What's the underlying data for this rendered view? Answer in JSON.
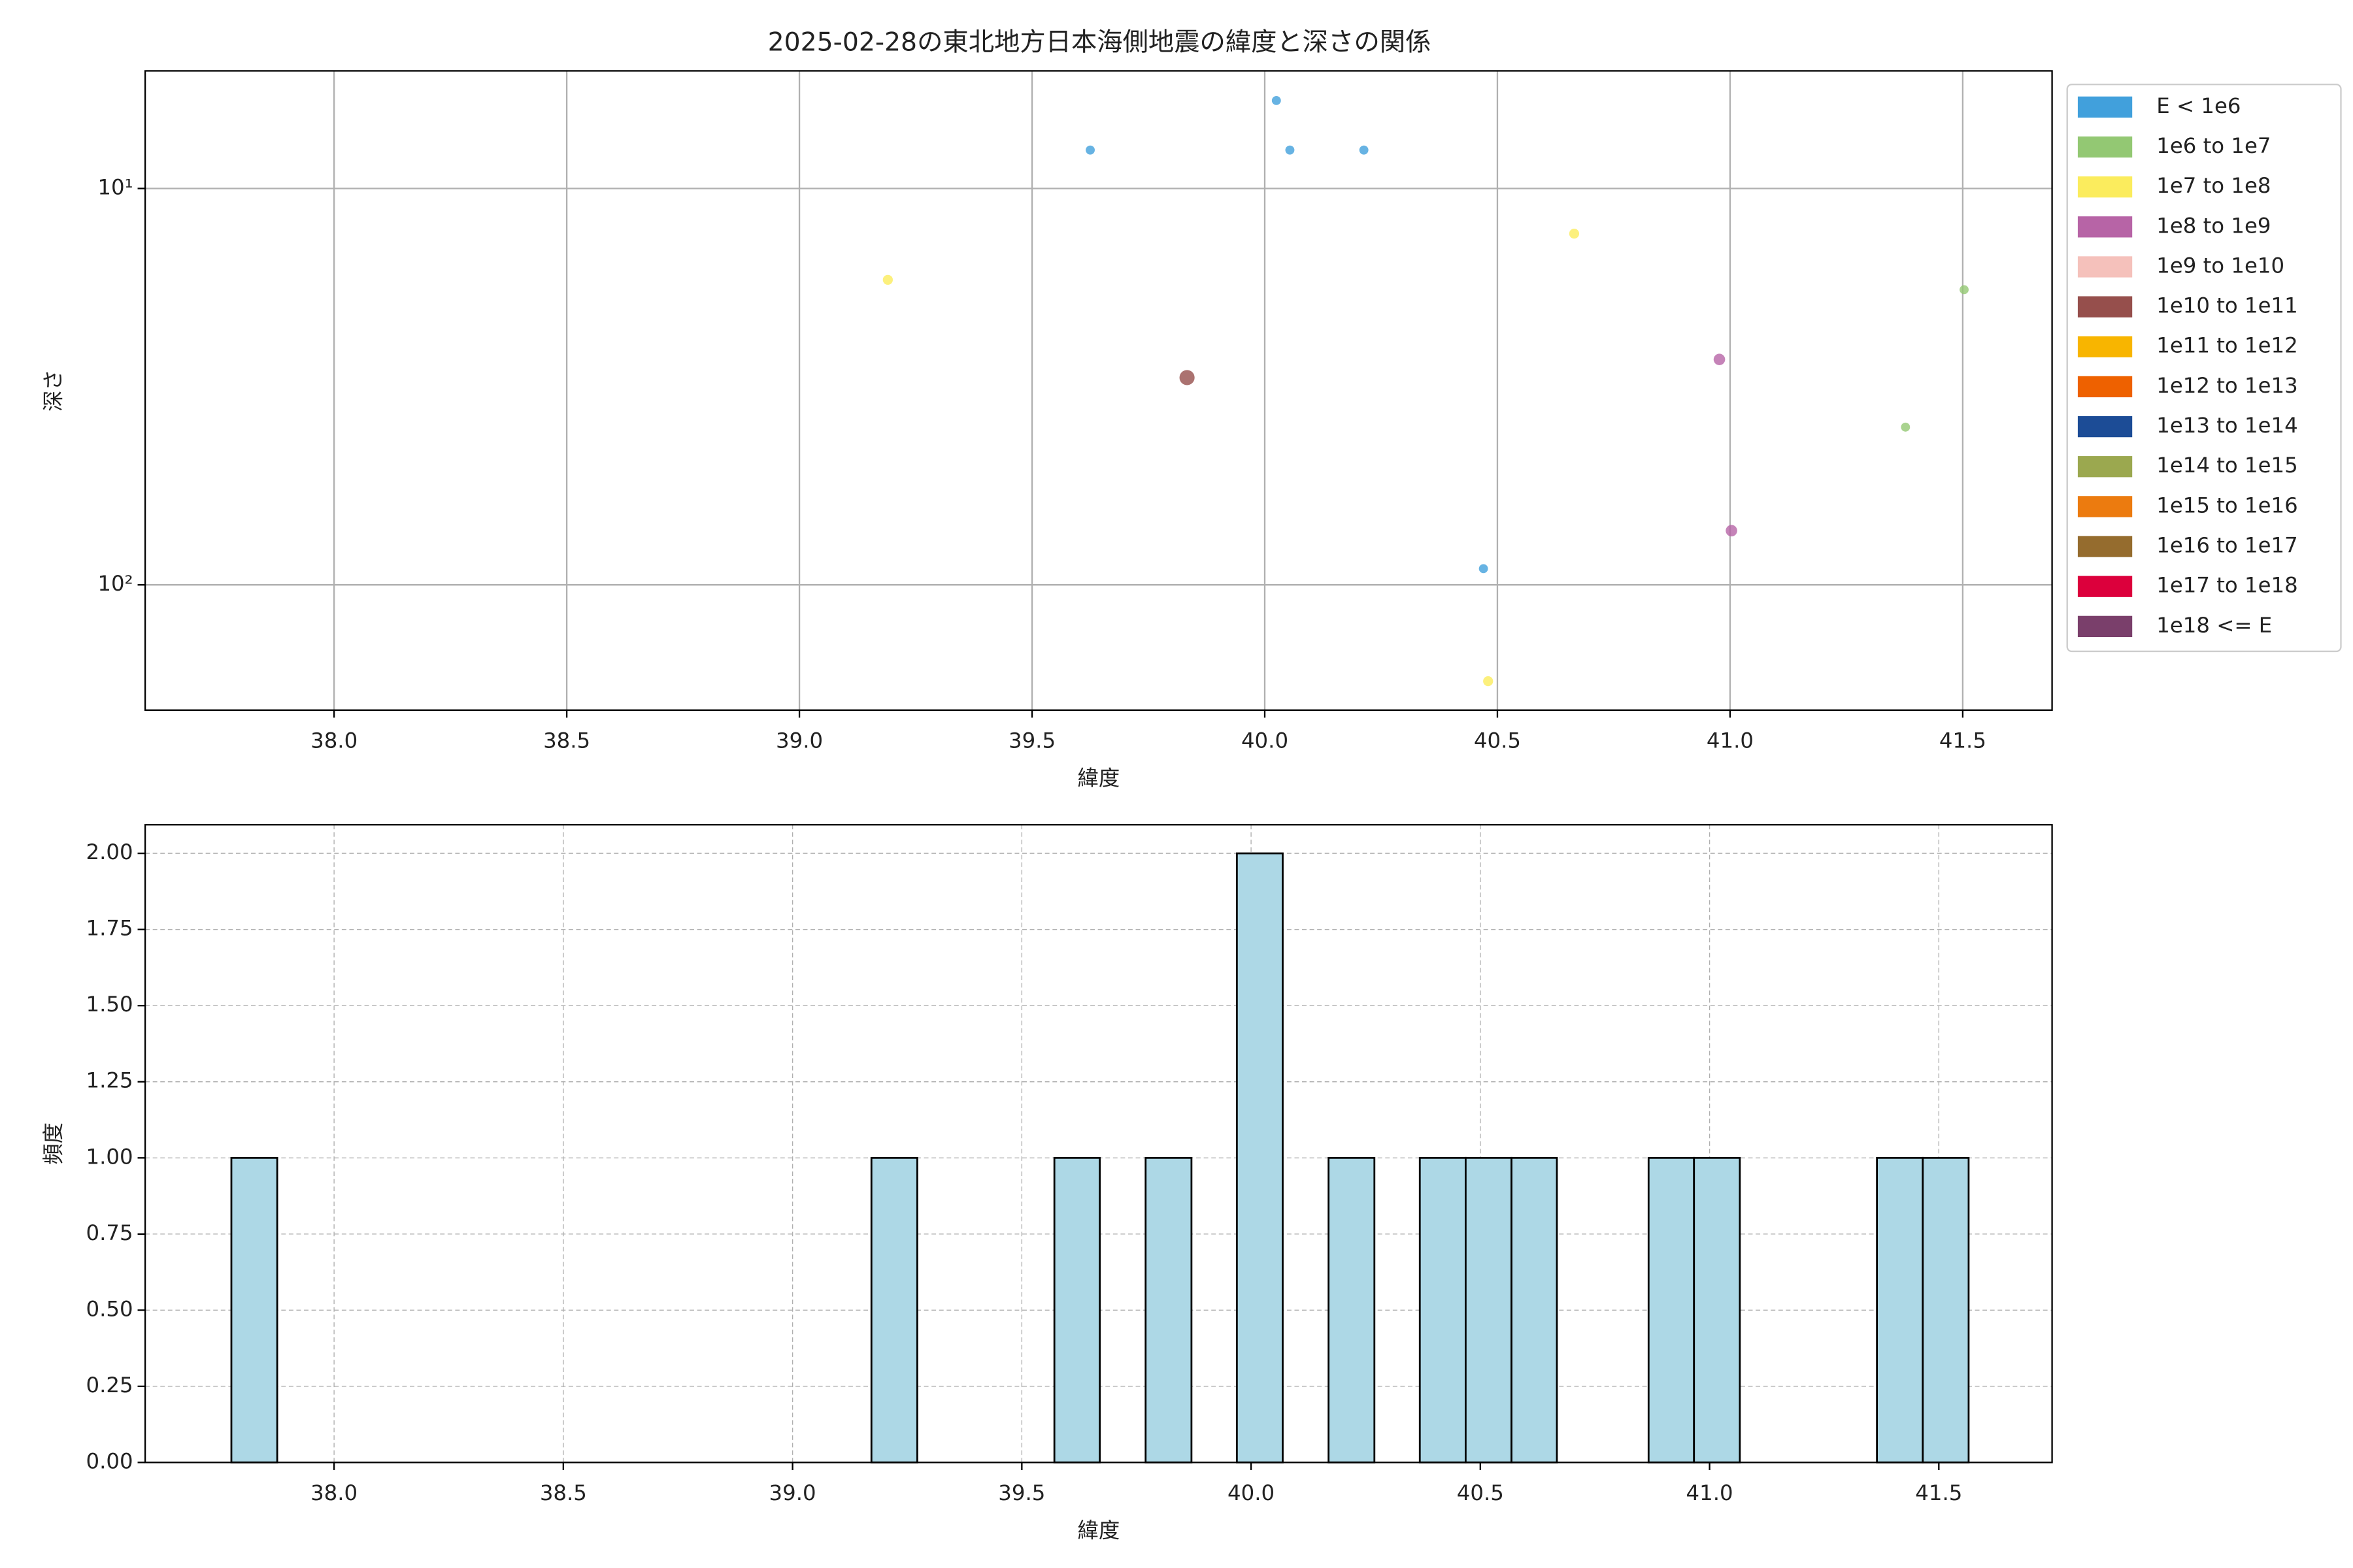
{
  "chart_data": [
    {
      "type": "scatter",
      "title": "2025-02-28の東北地方日本海側地震の緯度と深さの関係",
      "xlabel": "緯度",
      "ylabel": "深さ",
      "xlim": [
        37.594,
        41.692
      ],
      "xticks": [
        {
          "value": 38,
          "label": "38.0"
        },
        {
          "value": 38.5,
          "label": "38.5"
        },
        {
          "value": 39,
          "label": "39.0"
        },
        {
          "value": 39.5,
          "label": "39.5"
        },
        {
          "value": 40,
          "label": "40.0"
        },
        {
          "value": 40.5,
          "label": "40.5"
        },
        {
          "value": 41,
          "label": "41.0"
        },
        {
          "value": 41.5,
          "label": "41.5"
        }
      ],
      "ylim": [
        5.05,
        207
      ],
      "yscale": "log",
      "y_inverted": true,
      "yticks": [
        {
          "value": 10,
          "label": "10¹"
        },
        {
          "value": 100,
          "label": "10²"
        }
      ],
      "grid": true,
      "legend": "outside right",
      "series": [
        {
          "name": "E < 1e6",
          "color": "#41a0dc",
          "marker_size": 3,
          "x": [
            39.625,
            40.025,
            40.054,
            40.213,
            40.47
          ],
          "values": [
            8,
            6,
            8,
            8,
            91
          ]
        },
        {
          "name": "1e6 to 1e7",
          "color": "#93c873",
          "marker_size": 3,
          "x": [
            41.503,
            41.377
          ],
          "values": [
            18,
            40
          ]
        },
        {
          "name": "1e7 to 1e8",
          "color": "#fbec5d",
          "marker_size": 3.3,
          "x": [
            39.19,
            40.665,
            40.48
          ],
          "values": [
            17,
            13,
            175
          ]
        },
        {
          "name": "1e8 to 1e9",
          "color": "#b764a6",
          "marker_size": 3.8,
          "x": [
            40.977,
            41.003
          ],
          "values": [
            27,
            73
          ]
        },
        {
          "name": "1e9 to 1e10",
          "color": "#f5c1bb",
          "marker_size": 4,
          "x": [],
          "values": []
        },
        {
          "name": "1e10 to 1e11",
          "color": "#964f4c",
          "marker_size": 5,
          "x": [
            39.833
          ],
          "values": [
            30
          ]
        },
        {
          "name": "1e11 to 1e12",
          "color": "#f8b500",
          "marker_size": 5,
          "x": [],
          "values": []
        },
        {
          "name": "1e12 to 1e13",
          "color": "#ee6100",
          "marker_size": 5,
          "x": [],
          "values": []
        },
        {
          "name": "1e13 to 1e14",
          "color": "#1c4c96",
          "marker_size": 5,
          "x": [],
          "values": []
        },
        {
          "name": "1e14 to 1e15",
          "color": "#9ba84f",
          "marker_size": 5,
          "x": [],
          "values": []
        },
        {
          "name": "1e15 to 1e16",
          "color": "#ec7b0f",
          "marker_size": 5,
          "x": [],
          "values": []
        },
        {
          "name": "1e16 to 1e17",
          "color": "#956c2e",
          "marker_size": 5,
          "x": [],
          "values": []
        },
        {
          "name": "1e17 to 1e18",
          "color": "#dc003c",
          "marker_size": 5,
          "x": [],
          "values": []
        },
        {
          "name": "1e18 <= E",
          "color": "#7a3f6b",
          "marker_size": 5,
          "x": [],
          "values": []
        }
      ]
    },
    {
      "type": "histogram",
      "xlabel": "緯度",
      "ylabel": "頻度",
      "color": "#add8e6",
      "edgecolor": "#000000",
      "xlim": [
        37.588,
        41.747
      ],
      "xticks": [
        {
          "value": 38,
          "label": "38.0"
        },
        {
          "value": 38.5,
          "label": "38.5"
        },
        {
          "value": 39,
          "label": "39.0"
        },
        {
          "value": 39.5,
          "label": "39.5"
        },
        {
          "value": 40,
          "label": "40.0"
        },
        {
          "value": 40.5,
          "label": "40.5"
        },
        {
          "value": 41,
          "label": "41.0"
        },
        {
          "value": 41.5,
          "label": "41.5"
        }
      ],
      "ylim": [
        0,
        2.094
      ],
      "yticks": [
        {
          "value": 0,
          "label": "0.00"
        },
        {
          "value": 0.25,
          "label": "0.25"
        },
        {
          "value": 0.5,
          "label": "0.50"
        },
        {
          "value": 0.75,
          "label": "0.75"
        },
        {
          "value": 1,
          "label": "1.00"
        },
        {
          "value": 1.25,
          "label": "1.25"
        },
        {
          "value": 1.5,
          "label": "1.50"
        },
        {
          "value": 1.75,
          "label": "1.75"
        },
        {
          "value": 2,
          "label": "2.00"
        }
      ],
      "grid": true,
      "grid_style": "dashed",
      "bins": [
        37.776,
        37.876,
        37.975,
        38.075,
        38.175,
        38.275,
        38.374,
        38.474,
        38.574,
        38.673,
        38.773,
        38.873,
        38.972,
        39.072,
        39.172,
        39.272,
        39.371,
        39.471,
        39.571,
        39.67,
        39.77,
        39.87,
        39.969,
        40.069,
        40.169,
        40.269,
        40.368,
        40.468,
        40.568,
        40.667,
        40.767,
        40.867,
        40.966,
        41.066,
        41.166,
        41.266,
        41.365,
        41.465,
        41.565
      ],
      "counts": [
        1,
        0,
        0,
        0,
        0,
        0,
        0,
        0,
        0,
        0,
        0,
        0,
        0,
        0,
        1,
        0,
        0,
        0,
        1,
        0,
        1,
        0,
        2,
        0,
        1,
        0,
        1,
        1,
        1,
        0,
        0,
        1,
        1,
        0,
        0,
        0,
        1,
        1
      ]
    }
  ]
}
